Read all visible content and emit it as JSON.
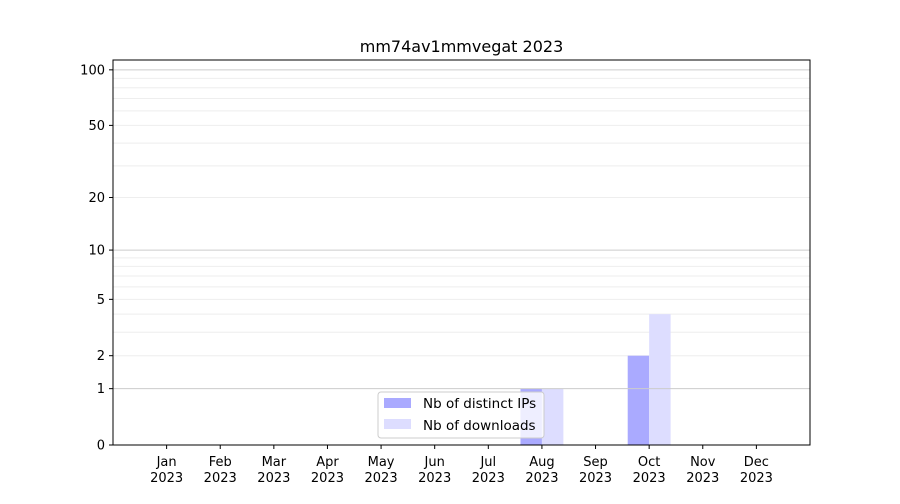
{
  "chart_data": {
    "type": "bar",
    "title": "mm74av1mmvegat 2023",
    "xlabel": "",
    "ylabel": "",
    "yscale": "log(1+y)",
    "ylim": [
      0,
      113
    ],
    "yticks": [
      0,
      1,
      2,
      5,
      10,
      20,
      50,
      100
    ],
    "ytick_labels": [
      "0",
      "1",
      "2",
      "5",
      "10",
      "20",
      "50",
      "100"
    ],
    "categories": [
      "Jan\n2023",
      "Feb\n2023",
      "Mar\n2023",
      "Apr\n2023",
      "May\n2023",
      "Jun\n2023",
      "Jul\n2023",
      "Aug\n2023",
      "Sep\n2023",
      "Oct\n2023",
      "Nov\n2023",
      "Dec\n2023"
    ],
    "category_labels": [
      [
        "Jan",
        "2023"
      ],
      [
        "Feb",
        "2023"
      ],
      [
        "Mar",
        "2023"
      ],
      [
        "Apr",
        "2023"
      ],
      [
        "May",
        "2023"
      ],
      [
        "Jun",
        "2023"
      ],
      [
        "Jul",
        "2023"
      ],
      [
        "Aug",
        "2023"
      ],
      [
        "Sep",
        "2023"
      ],
      [
        "Oct",
        "2023"
      ],
      [
        "Nov",
        "2023"
      ],
      [
        "Dec",
        "2023"
      ]
    ],
    "series": [
      {
        "name": "Nb of distinct IPs",
        "color": "#aaaaff",
        "values": [
          0,
          0,
          0,
          0,
          0,
          0,
          0,
          1,
          0,
          2,
          0,
          0
        ]
      },
      {
        "name": "Nb of downloads",
        "color": "#ddddff",
        "values": [
          0,
          0,
          0,
          0,
          0,
          0,
          0,
          1,
          0,
          4,
          0,
          0
        ]
      }
    ],
    "grid": true,
    "legend": "lower-center"
  }
}
